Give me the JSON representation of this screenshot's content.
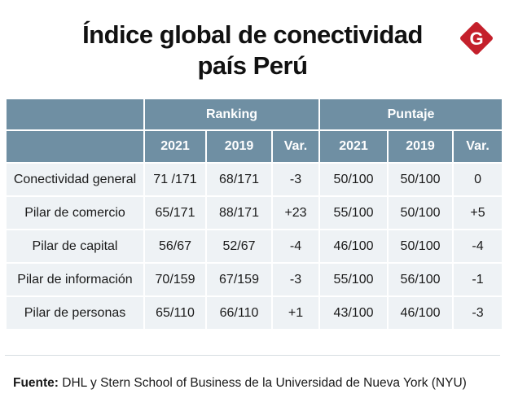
{
  "title": {
    "line1": "Índice global de conectividad",
    "line2": "país Perú"
  },
  "logo": {
    "letter": "G",
    "color": "#c4202b"
  },
  "table": {
    "group_headers": [
      "Ranking",
      "Puntaje"
    ],
    "sub_headers": [
      "2021",
      "2019",
      "Var.",
      "2021",
      "2019",
      "Var."
    ],
    "rows": [
      {
        "label": "Conectividad general",
        "r2021": "71 /171",
        "r2019": "68/171",
        "rvar": "-3",
        "p2021": "50/100",
        "p2019": "50/100",
        "pvar": "0"
      },
      {
        "label": "Pilar de comercio",
        "r2021": "65/171",
        "r2019": "88/171",
        "rvar": "+23",
        "p2021": "55/100",
        "p2019": "50/100",
        "pvar": "+5"
      },
      {
        "label": "Pilar de capital",
        "r2021": "56/67",
        "r2019": "52/67",
        "rvar": "-4",
        "p2021": "46/100",
        "p2019": "50/100",
        "pvar": "-4"
      },
      {
        "label": "Pilar de información",
        "r2021": "70/159",
        "r2019": "67/159",
        "rvar": "-3",
        "p2021": "55/100",
        "p2019": "56/100",
        "pvar": "-1"
      },
      {
        "label": "Pilar de personas",
        "r2021": "65/110",
        "r2019": "66/110",
        "rvar": "+1",
        "p2021": "43/100",
        "p2019": "46/100",
        "pvar": "-3"
      }
    ]
  },
  "source": {
    "prefix": "Fuente:",
    "text": " DHL y Stern School of Business de la Universidad de Nueva York (NYU)"
  },
  "colors": {
    "header_bg": "#6f8fa3",
    "row_bg": "#eef2f5"
  }
}
